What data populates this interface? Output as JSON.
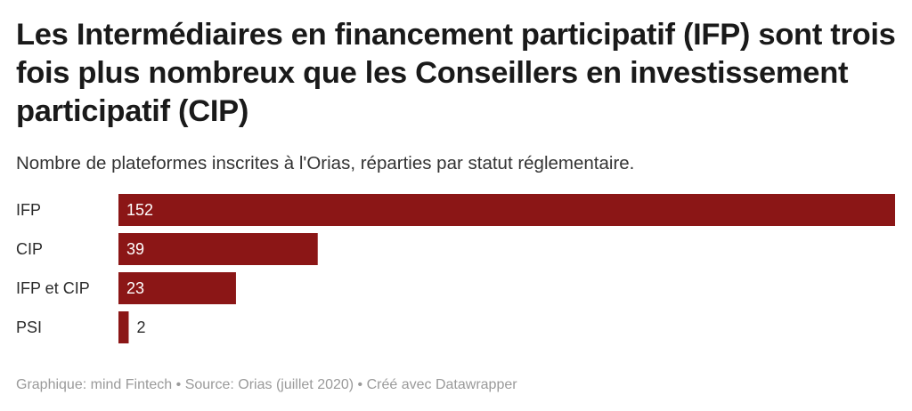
{
  "header": {
    "title": "Les Intermédiaires en financement participatif (IFP) sont trois fois plus nombreux que les Conseillers en investissement participatif (CIP)",
    "subtitle": "Nombre de plateformes inscrites à l'Orias, réparties par statut réglementaire."
  },
  "footer": {
    "text": "Graphique: mind Fintech • Source: Orias (juillet 2020) • Créé avec Datawrapper"
  },
  "colors": {
    "bar": "#8b1616",
    "label": "#2b2b2b",
    "value_inside": "#ffffff"
  },
  "chart_data": {
    "type": "bar",
    "orientation": "horizontal",
    "categories": [
      "IFP",
      "CIP",
      "IFP et CIP",
      "PSI"
    ],
    "values": [
      152,
      39,
      23,
      2
    ],
    "xlim": [
      0,
      152
    ],
    "grid": false,
    "legend": "none"
  }
}
